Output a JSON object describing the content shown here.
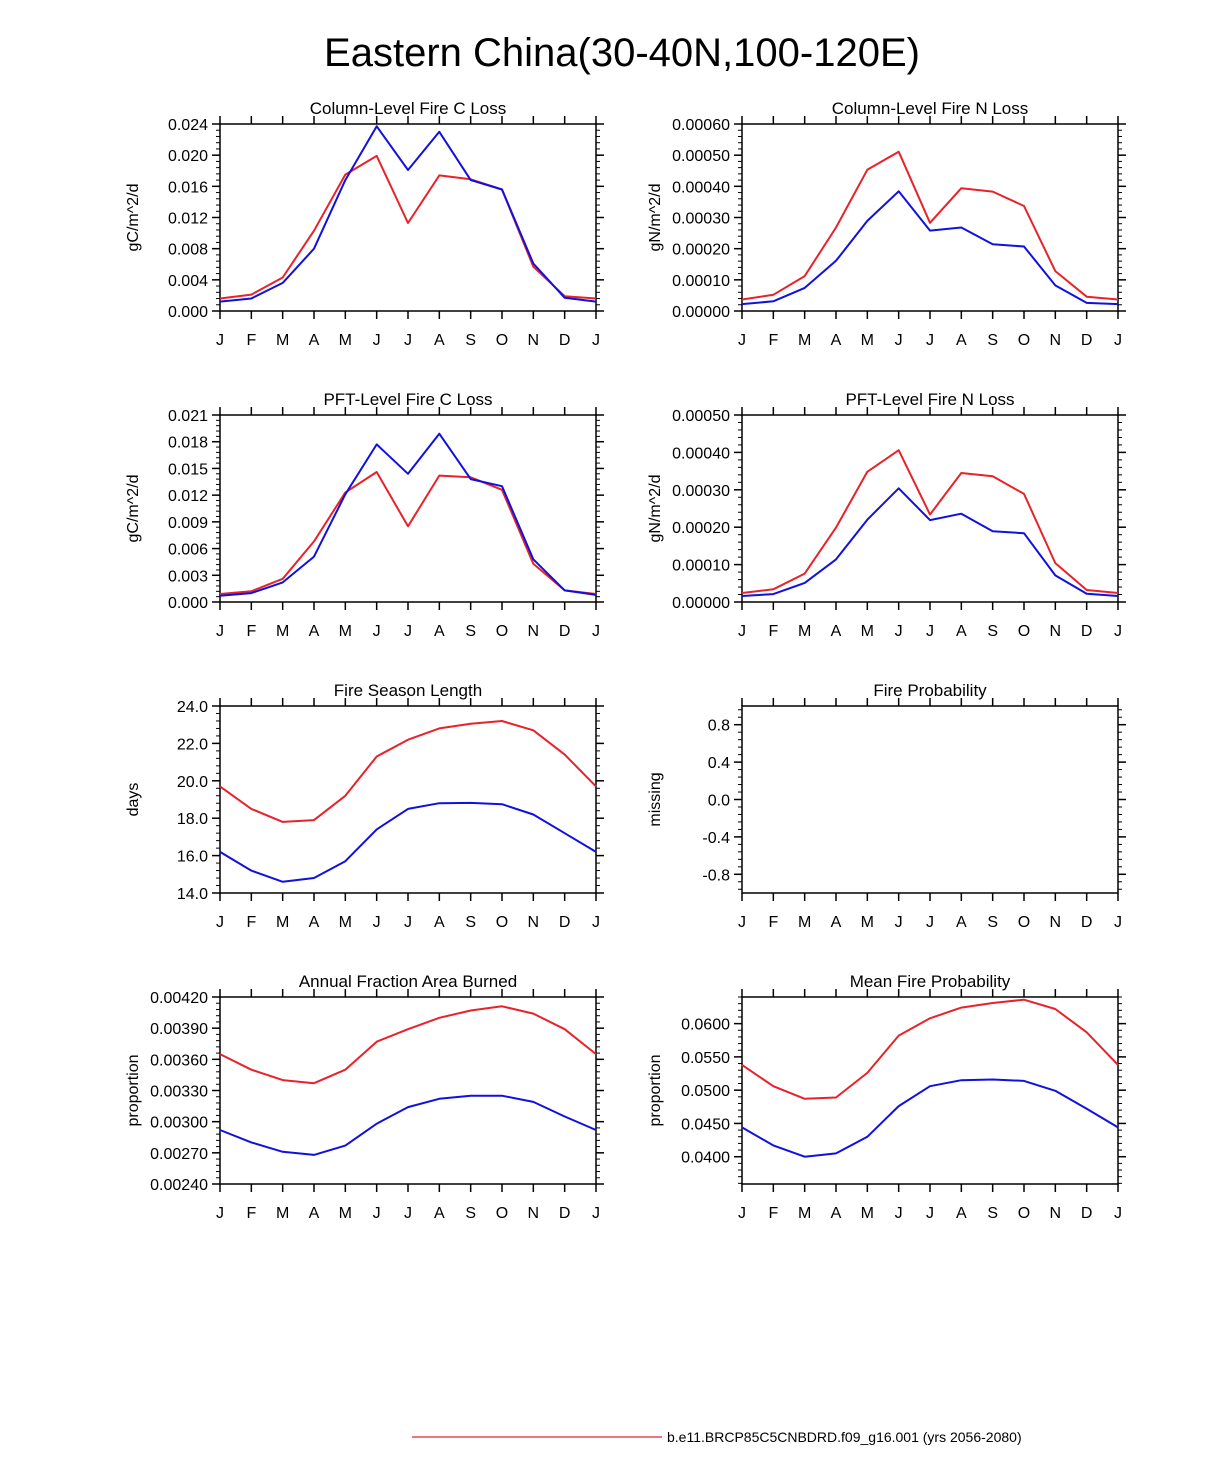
{
  "page_title": "Eastern China(30-40N,100-120E)",
  "legend": {
    "entries": [
      {
        "label": "b.e11.BRCP85C5CNBDRD.f09_g16.001 (yrs 2056-2080)",
        "color": "#e8222a"
      }
    ]
  },
  "colors": {
    "red_series": "#e8222a",
    "blue_series": "#1010e0",
    "axes": "#000000"
  },
  "chart_data": [
    {
      "type": "line",
      "title": "Column-Level Fire C Loss",
      "ylabel": "gC/m^2/d",
      "x": [
        "J",
        "F",
        "M",
        "A",
        "M",
        "J",
        "J",
        "A",
        "S",
        "O",
        "N",
        "D",
        "J"
      ],
      "ylim": [
        0,
        0.024
      ],
      "yticks": [
        "0.000",
        "0.004",
        "0.008",
        "0.012",
        "0.016",
        "0.020",
        "0.024"
      ],
      "series": [
        {
          "color": "#e8222a",
          "values": [
            0.0016,
            0.0021,
            0.0043,
            0.0103,
            0.0175,
            0.0199,
            0.0113,
            0.0174,
            0.0169,
            0.0156,
            0.0057,
            0.0019,
            0.0016
          ]
        },
        {
          "color": "#1010e0",
          "values": [
            0.0012,
            0.0016,
            0.0036,
            0.008,
            0.0168,
            0.0237,
            0.0181,
            0.023,
            0.0168,
            0.0156,
            0.0061,
            0.0017,
            0.0012
          ]
        }
      ]
    },
    {
      "type": "line",
      "title": "Column-Level Fire N Loss",
      "ylabel": "gN/m^2/d",
      "x": [
        "J",
        "F",
        "M",
        "A",
        "M",
        "J",
        "J",
        "A",
        "S",
        "O",
        "N",
        "D",
        "J"
      ],
      "ylim": [
        0,
        0.0006
      ],
      "yticks": [
        "0.00000",
        "0.00010",
        "0.00020",
        "0.00030",
        "0.00040",
        "0.00050",
        "0.00060"
      ],
      "series": [
        {
          "color": "#e8222a",
          "values": [
            3.7e-05,
            5.2e-05,
            0.000112,
            0.000268,
            0.000453,
            0.000511,
            0.000283,
            0.000394,
            0.000383,
            0.000337,
            0.000128,
            4.6e-05,
            3.7e-05
          ]
        },
        {
          "color": "#1010e0",
          "values": [
            2.2e-05,
            3.1e-05,
            7.4e-05,
            0.000161,
            0.000289,
            0.000384,
            0.000258,
            0.000268,
            0.000214,
            0.000207,
            8.2e-05,
            2.6e-05,
            2.2e-05
          ]
        }
      ]
    },
    {
      "type": "line",
      "title": "PFT-Level Fire C Loss",
      "ylabel": "gC/m^2/d",
      "x": [
        "J",
        "F",
        "M",
        "A",
        "M",
        "J",
        "J",
        "A",
        "S",
        "O",
        "N",
        "D",
        "J"
      ],
      "ylim": [
        0,
        0.021
      ],
      "yticks": [
        "0.000",
        "0.003",
        "0.006",
        "0.009",
        "0.012",
        "0.015",
        "0.018",
        "0.021"
      ],
      "series": [
        {
          "color": "#e8222a",
          "values": [
            0.0009,
            0.0012,
            0.0026,
            0.0068,
            0.0123,
            0.0146,
            0.0085,
            0.0142,
            0.014,
            0.0126,
            0.0043,
            0.0013,
            0.0009
          ]
        },
        {
          "color": "#1010e0",
          "values": [
            0.0007,
            0.001,
            0.0022,
            0.0051,
            0.0121,
            0.0177,
            0.0144,
            0.0189,
            0.0138,
            0.013,
            0.0048,
            0.0013,
            0.0008
          ]
        }
      ]
    },
    {
      "type": "line",
      "title": "PFT-Level Fire N Loss",
      "ylabel": "gN/m^2/d",
      "x": [
        "J",
        "F",
        "M",
        "A",
        "M",
        "J",
        "J",
        "A",
        "S",
        "O",
        "N",
        "D",
        "J"
      ],
      "ylim": [
        0,
        0.0005
      ],
      "yticks": [
        "0.00000",
        "0.00010",
        "0.00020",
        "0.00030",
        "0.00040",
        "0.00050"
      ],
      "series": [
        {
          "color": "#e8222a",
          "values": [
            2.4e-05,
            3.4e-05,
            7.6e-05,
            0.000199,
            0.000348,
            0.000406,
            0.000234,
            0.000345,
            0.000336,
            0.000289,
            0.000104,
            3.2e-05,
            2.4e-05
          ]
        },
        {
          "color": "#1010e0",
          "values": [
            1.6e-05,
            2.1e-05,
            5.1e-05,
            0.000114,
            0.00022,
            0.000304,
            0.000219,
            0.000236,
            0.000189,
            0.000184,
            7.1e-05,
            2.2e-05,
            1.6e-05
          ]
        }
      ]
    },
    {
      "type": "line",
      "title": "Fire Season Length",
      "ylabel": "days",
      "x": [
        "J",
        "F",
        "M",
        "A",
        "M",
        "J",
        "J",
        "A",
        "S",
        "O",
        "N",
        "D",
        "J"
      ],
      "ylim": [
        14.0,
        24.0
      ],
      "yticks": [
        "14.0",
        "16.0",
        "18.0",
        "20.0",
        "22.0",
        "24.0"
      ],
      "series": [
        {
          "color": "#e8222a",
          "values": [
            19.7,
            18.5,
            17.8,
            17.9,
            19.2,
            21.3,
            22.2,
            22.8,
            23.05,
            23.2,
            22.7,
            21.4,
            19.7
          ]
        },
        {
          "color": "#1010e0",
          "values": [
            16.2,
            15.2,
            14.6,
            14.8,
            15.7,
            17.4,
            18.5,
            18.8,
            18.82,
            18.75,
            18.2,
            17.2,
            16.2
          ]
        }
      ]
    },
    {
      "type": "line",
      "title": "Fire Probability",
      "ylabel": "missing",
      "x": [
        "J",
        "F",
        "M",
        "A",
        "M",
        "J",
        "J",
        "A",
        "S",
        "O",
        "N",
        "D",
        "J"
      ],
      "ylim": [
        -1.0,
        1.0
      ],
      "yticks": [
        "-0.8",
        "-0.4",
        "0.0",
        "0.4",
        "0.8"
      ],
      "yticks_values": [
        -0.8,
        -0.4,
        0.0,
        0.4,
        0.8
      ],
      "series": []
    },
    {
      "type": "line",
      "title": "Annual Fraction Area Burned",
      "ylabel": "proportion",
      "x": [
        "J",
        "F",
        "M",
        "A",
        "M",
        "J",
        "J",
        "A",
        "S",
        "O",
        "N",
        "D",
        "J"
      ],
      "ylim": [
        0.0024,
        0.0042
      ],
      "yticks": [
        "0.00240",
        "0.00270",
        "0.00300",
        "0.00330",
        "0.00360",
        "0.00390",
        "0.00420"
      ],
      "series": [
        {
          "color": "#e8222a",
          "values": [
            0.00365,
            0.0035,
            0.0034,
            0.00337,
            0.0035,
            0.00377,
            0.00389,
            0.004,
            0.00407,
            0.00411,
            0.00404,
            0.00389,
            0.00365
          ]
        },
        {
          "color": "#1010e0",
          "values": [
            0.00292,
            0.0028,
            0.00271,
            0.00268,
            0.00277,
            0.00298,
            0.00314,
            0.00322,
            0.00325,
            0.00325,
            0.00319,
            0.00305,
            0.00292
          ]
        }
      ]
    },
    {
      "type": "line",
      "title": "Mean Fire Probability",
      "ylabel": "proportion",
      "x": [
        "J",
        "F",
        "M",
        "A",
        "M",
        "J",
        "J",
        "A",
        "S",
        "O",
        "N",
        "D",
        "J"
      ],
      "ylim": [
        0.0359,
        0.064
      ],
      "yticks": [
        "0.0400",
        "0.0450",
        "0.0500",
        "0.0550",
        "0.0600"
      ],
      "yticks_values": [
        0.04,
        0.045,
        0.05,
        0.055,
        0.06
      ],
      "series": [
        {
          "color": "#e8222a",
          "values": [
            0.0538,
            0.0506,
            0.0487,
            0.0489,
            0.0526,
            0.0582,
            0.0608,
            0.0624,
            0.0631,
            0.0636,
            0.0622,
            0.0587,
            0.0538
          ]
        },
        {
          "color": "#1010e0",
          "values": [
            0.0444,
            0.0417,
            0.04,
            0.0405,
            0.043,
            0.0476,
            0.0506,
            0.0515,
            0.0516,
            0.0514,
            0.0499,
            0.0472,
            0.0444
          ]
        }
      ]
    }
  ]
}
